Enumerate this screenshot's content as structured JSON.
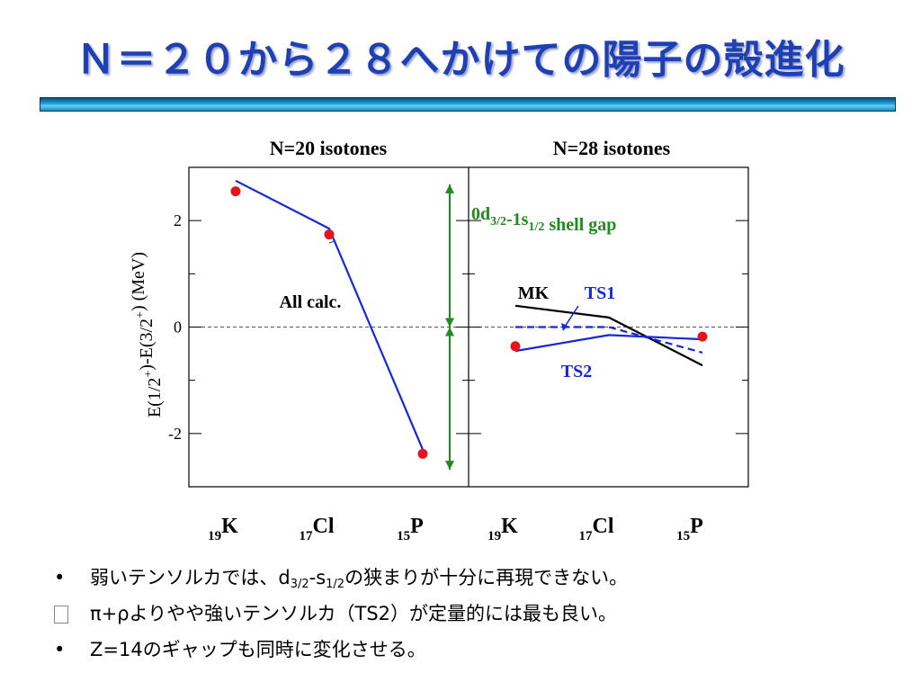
{
  "slide": {
    "title": "Ｎ＝２０から２８へかけての陽子の殻進化",
    "colors": {
      "title": "#1f3fb4",
      "bar_top": "#0a4f7e",
      "bar_mid": "#5fd0ee"
    }
  },
  "chart_data": {
    "type": "line",
    "ylabel_parts": [
      "E(1/2",
      "+",
      ")-E(3/2",
      "+",
      ") (MeV)"
    ],
    "ylim": [
      -3.0,
      3.0
    ],
    "yticks": [
      -2,
      0,
      2
    ],
    "reference_line": 0,
    "panels": [
      {
        "title": "N=20 isotones",
        "categories": [
          {
            "sub": "19",
            "symbol": "K"
          },
          {
            "sub": "17",
            "symbol": "Cl"
          },
          {
            "sub": "15",
            "symbol": "P"
          }
        ],
        "experiment": {
          "x": [
            0.0,
            1.0,
            2.0
          ],
          "y": [
            2.55,
            1.74,
            -2.38
          ],
          "color": "#e8141c"
        },
        "series": [
          {
            "label": "All calc.",
            "color": "#1428d8",
            "dash": false,
            "x": [
              0.0,
              1.0,
              2.0
            ],
            "y": [
              2.75,
              1.85,
              -2.3
            ]
          }
        ],
        "annotation": {
          "label_main": "0d",
          "label_sub1": "3/2",
          "label_mid": "-1s",
          "label_sub2": "1/2",
          "label_tail": " shell gap",
          "color": "#1e8c1e",
          "y_from": -2.68,
          "y_mid": 0.0,
          "y_to": 2.68
        }
      },
      {
        "title": "N=28 isotones",
        "categories": [
          {
            "sub": "19",
            "symbol": "K"
          },
          {
            "sub": "17",
            "symbol": "Cl"
          },
          {
            "sub": "15",
            "symbol": "P"
          }
        ],
        "experiment": {
          "x": [
            0.0,
            2.0
          ],
          "y": [
            -0.36,
            -0.18
          ],
          "color": "#e8141c"
        },
        "series": [
          {
            "label": "MK",
            "color": "#000000",
            "dash": false,
            "x": [
              0.0,
              1.0,
              2.0
            ],
            "y": [
              0.4,
              0.18,
              -0.72
            ]
          },
          {
            "label": "TS1",
            "color": "#1428d8",
            "dash": true,
            "x": [
              0.0,
              1.0,
              2.0
            ],
            "y": [
              0.0,
              0.0,
              -0.48
            ]
          },
          {
            "label": "TS2",
            "color": "#1428d8",
            "dash": false,
            "x": [
              0.0,
              1.0,
              2.0
            ],
            "y": [
              -0.45,
              -0.15,
              -0.23
            ]
          }
        ]
      }
    ]
  },
  "bullets": [
    {
      "mark": "•",
      "text_a": "弱いテンソルカでは、d",
      "sub_a": "3/2",
      "text_b": "-s",
      "sub_b": "1/2",
      "text_c": "の狭まりが十分に再現できない。"
    },
    {
      "mark": "box",
      "text": "π+ρよりやや強いテンソルカ（TS2）が定量的には最も良い。"
    },
    {
      "mark": "•",
      "text": "Z=14のギャップも同時に変化させる。"
    }
  ]
}
